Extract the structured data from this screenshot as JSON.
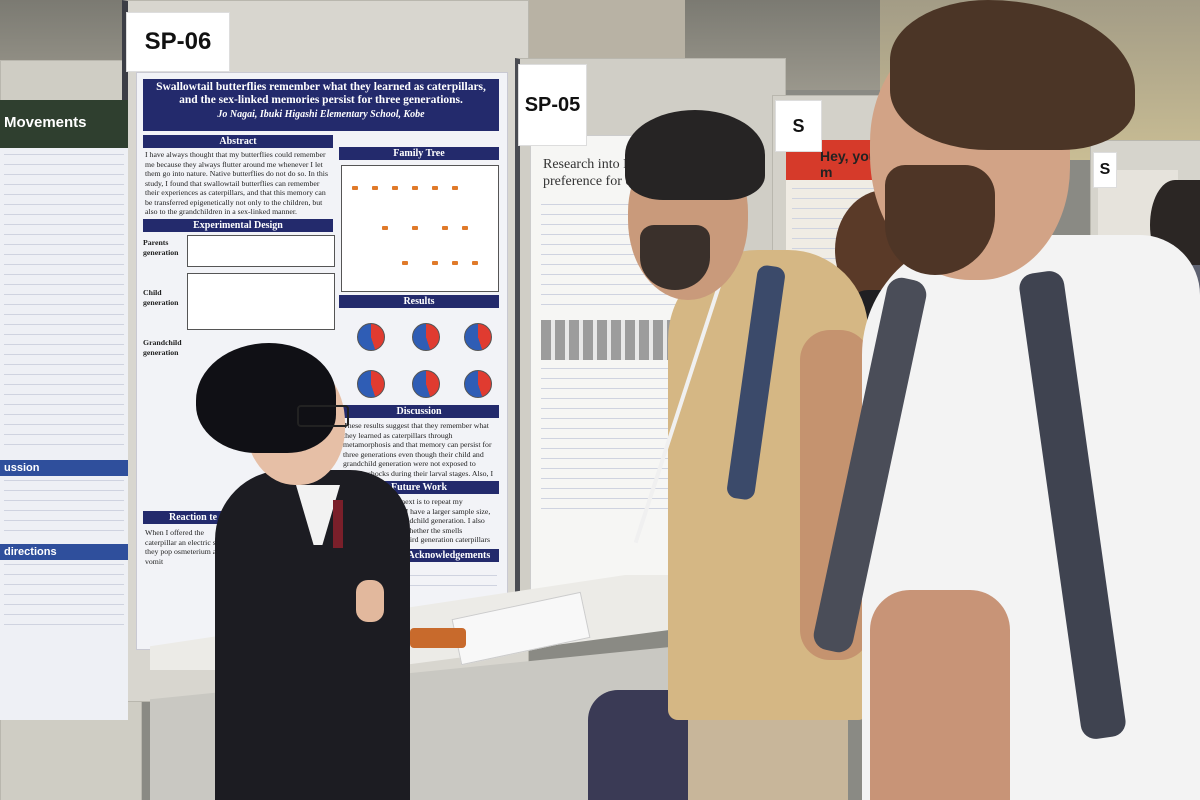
{
  "signs": {
    "sp06": "SP-06",
    "sp05": "SP-05",
    "far": "S",
    "far2": "S"
  },
  "main_poster": {
    "title_line1": "Swallowtail butterflies remember what they learned as caterpillars,",
    "title_line2": "and the sex-linked memories persist for three generations.",
    "author": "Jo Nagai, Ibuki Higashi Elementary School, Kobe",
    "sections": {
      "abstract": "Abstract",
      "family_tree": "Family Tree",
      "experimental_design": "Experimental Design",
      "results": "Results",
      "discussion": "Discussion",
      "future_work": "Future Work",
      "reaction_test": "Reaction te",
      "references": "eferences and Acknowledgements"
    },
    "abstract_text": "I have always thought that my butterflies could remember me because they always flutter around me whenever I let them go into nature. Native butterflies do not do so. In this study, I found that swallowtail butterflies can remember their experiences as caterpillars, and that this memory can be transferred epigenetically not only to the children, but also to the grandchildren in a sex-linked manner.",
    "generations": {
      "parents": "Parents generation",
      "child": "Child generation",
      "grandchild": "Grandchild generation"
    },
    "discussion_text": "These results suggest that they remember what they learned as caterpillars through metamorphosis and that memory can persist for three generations even though their child and grandchild generation were not exposed to electric shocks during their larval stages. Also, I think the results of pattern B and C suggest that the memories may be transmitted through males not females.",
    "future_text": "What I want to do next is to repeat my experiments so that I have a larger sample size, especially in the grandchild generation. I also want to investigate whether the smells experienced by the third generation caterpillars and butterflies influenced by the electric shock experienced by their grandparents.",
    "reaction_text": "When I offered the caterpillar an electric shock, they pop osmeterium and vomit"
  },
  "left_poster": {
    "title": "Movements",
    "sections": {
      "discussion": "ussion",
      "directions": "directions"
    }
  },
  "mid_poster": {
    "title": "Research into Phialoda preference for cradle c"
  },
  "far_poster": {
    "title": "Hey, you m"
  }
}
